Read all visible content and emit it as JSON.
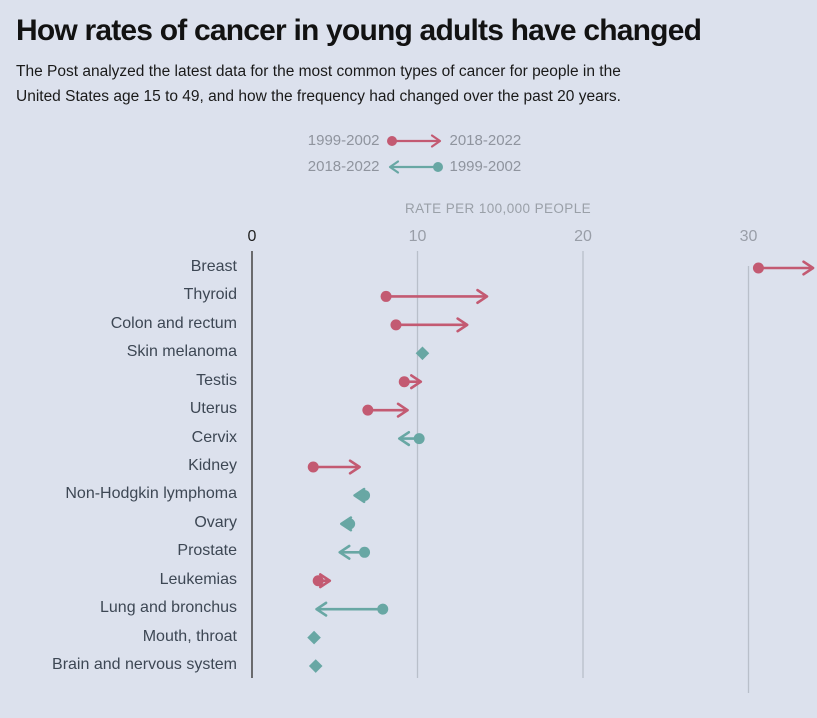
{
  "page": {
    "background_color": "#dce1ed",
    "title": "How rates of cancer in young adults have changed",
    "subtitle_lines": [
      "The Post analyzed the latest data for the most common types of cancer for people in the",
      "United States age 15 to 49, and how the frequency had changed over the past 20 years."
    ]
  },
  "legend": {
    "rows": [
      {
        "left_label": "1999-2002",
        "right_label": "2018-2022",
        "direction": "increase",
        "arrow_icon": "right-arrow-with-dot-icon"
      },
      {
        "left_label": "2018-2022",
        "right_label": "1999-2002",
        "direction": "decrease",
        "arrow_icon": "left-arrow-with-dot-icon"
      }
    ]
  },
  "chart_data": {
    "type": "arrow",
    "title": "How rates of cancer in young adults have changed",
    "xlabel": "RATE PER 100,000 PEOPLE",
    "x_ticks": [
      0,
      10,
      20,
      30
    ],
    "xlim": [
      0,
      34.2
    ],
    "grid": "vertical",
    "legend_position": "top-center",
    "colors": {
      "increase": "#c35a72",
      "decrease": "#68a7a4",
      "gridline": "#b9bfca",
      "zero_axis": "#4d4d4d"
    },
    "rows": [
      {
        "category": "Breast",
        "start": 30.6,
        "end": 33.9,
        "direction": "increase"
      },
      {
        "category": "Thyroid",
        "start": 8.1,
        "end": 14.2,
        "direction": "increase"
      },
      {
        "category": "Colon and rectum",
        "start": 8.7,
        "end": 13.0,
        "direction": "increase"
      },
      {
        "category": "Skin melanoma",
        "start": 10.5,
        "end": 10.1,
        "direction": "decrease"
      },
      {
        "category": "Testis",
        "start": 9.2,
        "end": 10.2,
        "direction": "increase"
      },
      {
        "category": "Uterus",
        "start": 7.0,
        "end": 9.4,
        "direction": "increase"
      },
      {
        "category": "Cervix",
        "start": 10.1,
        "end": 8.9,
        "direction": "decrease"
      },
      {
        "category": "Kidney",
        "start": 3.7,
        "end": 6.5,
        "direction": "increase"
      },
      {
        "category": "Non-Hodgkin lymphoma",
        "start": 6.8,
        "end": 6.2,
        "direction": "decrease"
      },
      {
        "category": "Ovary",
        "start": 5.9,
        "end": 5.4,
        "direction": "decrease"
      },
      {
        "category": "Prostate",
        "start": 6.8,
        "end": 5.3,
        "direction": "decrease"
      },
      {
        "category": "Leukemias",
        "start": 4.0,
        "end": 4.7,
        "direction": "increase"
      },
      {
        "category": "Lung and bronchus",
        "start": 7.9,
        "end": 3.9,
        "direction": "decrease"
      },
      {
        "category": "Mouth, throat",
        "start": 3.8,
        "end": 3.7,
        "direction": "decrease"
      },
      {
        "category": "Brain and nervous system",
        "start": 3.9,
        "end": 3.8,
        "direction": "decrease"
      }
    ]
  }
}
